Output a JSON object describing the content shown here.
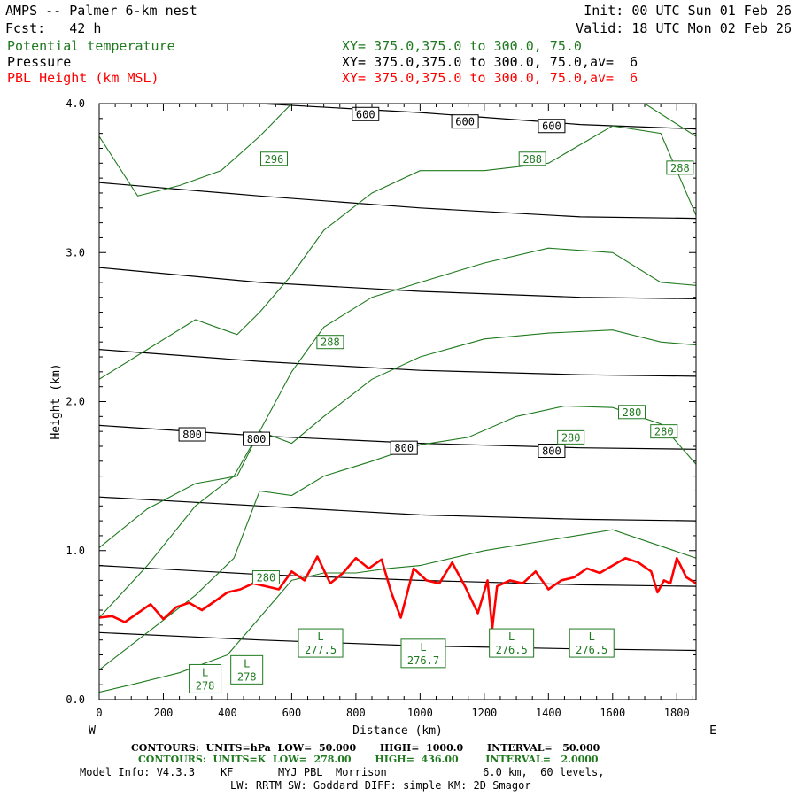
{
  "header": {
    "title": "AMPS -- Palmer 6-km nest",
    "fcst": "Fcst:   42 h",
    "init": "Init: 00 UTC Sun 01 Feb 26",
    "valid": "Valid: 18 UTC Mon 02 Feb 26",
    "legend": [
      {
        "label": "Potential temperature",
        "xy": "XY= 375.0,375.0 to 300.0, 75.0",
        "color": "#1f7a1f"
      },
      {
        "label": "Pressure",
        "xy": "XY= 375.0,375.0 to 300.0, 75.0,av=  6",
        "color": "#000000"
      },
      {
        "label": "PBL Height (km MSL)",
        "xy": "XY= 375.0,375.0 to 300.0, 75.0,av=  6",
        "color": "#ff0000"
      }
    ]
  },
  "footer": {
    "contours_pressure": "CONTOURS:  UNITS=hPa  LOW=  50.000       HIGH=  1000.0       INTERVAL=   50.000",
    "contours_theta": "CONTOURS:  UNITS=K  LOW=  278.00       HIGH=  436.00        INTERVAL=   2.0000",
    "model_info": "Model Info: V4.3.3    KF       MYJ PBL  Morrison               6.0 km,  60 levels,",
    "model_info2": "LW: RRTM SW: Goddard DIFF: simple KM: 2D Smagor"
  },
  "chart_data": {
    "type": "line",
    "xlabel": "Distance (km)",
    "ylabel": "Height (km)",
    "xlim": [
      0,
      1860
    ],
    "ylim": [
      0.0,
      4.0
    ],
    "x_ticks": [
      0,
      200,
      400,
      600,
      800,
      1000,
      1200,
      1400,
      1600,
      1800
    ],
    "y_ticks": [
      "0.0",
      "1.0",
      "2.0",
      "3.0",
      "4.0"
    ],
    "left_end_label": "W",
    "right_end_label": "E",
    "grid": false,
    "pressure_contours_hPa": [
      {
        "level": 600,
        "x": [
          0,
          500,
          1000,
          1500,
          1860
        ],
        "y": [
          4.1,
          4.0,
          3.94,
          3.86,
          3.83
        ]
      },
      {
        "level": 650,
        "x": [
          0,
          500,
          1000,
          1500,
          1860
        ],
        "y": [
          3.47,
          3.38,
          3.3,
          3.24,
          3.23
        ]
      },
      {
        "level": 700,
        "x": [
          0,
          500,
          1000,
          1500,
          1860
        ],
        "y": [
          2.9,
          2.8,
          2.74,
          2.7,
          2.69
        ]
      },
      {
        "level": 750,
        "x": [
          0,
          500,
          1000,
          1500,
          1860
        ],
        "y": [
          2.35,
          2.27,
          2.21,
          2.18,
          2.17
        ]
      },
      {
        "level": 800,
        "x": [
          0,
          500,
          1000,
          1500,
          1860
        ],
        "y": [
          1.84,
          1.77,
          1.72,
          1.69,
          1.68
        ]
      },
      {
        "level": 850,
        "x": [
          0,
          500,
          1000,
          1500,
          1860
        ],
        "y": [
          1.36,
          1.3,
          1.24,
          1.21,
          1.2
        ]
      },
      {
        "level": 900,
        "x": [
          0,
          500,
          1000,
          1500,
          1860
        ],
        "y": [
          0.9,
          0.84,
          0.8,
          0.77,
          0.76
        ]
      },
      {
        "level": 950,
        "x": [
          0,
          500,
          1000,
          1500,
          1860
        ],
        "y": [
          0.45,
          0.4,
          0.36,
          0.34,
          0.33
        ]
      }
    ],
    "pressure_labels": [
      {
        "text": "600",
        "x": 830,
        "y": 3.93
      },
      {
        "text": "600",
        "x": 1140,
        "y": 3.88
      },
      {
        "text": "600",
        "x": 1410,
        "y": 3.85
      },
      {
        "text": "800",
        "x": 290,
        "y": 1.78
      },
      {
        "text": "800",
        "x": 490,
        "y": 1.75
      },
      {
        "text": "800",
        "x": 950,
        "y": 1.69
      },
      {
        "text": "800",
        "x": 1410,
        "y": 1.67
      }
    ],
    "theta_contours_K": [
      {
        "x": [
          0,
          100,
          250,
          400,
          500,
          600,
          700,
          800,
          900,
          1000,
          1200,
          1400,
          1600,
          1860
        ],
        "y": [
          0.05,
          0.1,
          0.18,
          0.3,
          0.55,
          0.8,
          0.85,
          0.85,
          0.88,
          0.9,
          1.0,
          1.07,
          1.14,
          0.95
        ]
      },
      {
        "x": [
          0,
          150,
          300,
          420,
          500,
          600,
          700,
          850,
          1000,
          1150,
          1300,
          1450,
          1600,
          1750,
          1860
        ],
        "y": [
          0.2,
          0.45,
          0.7,
          0.95,
          1.4,
          1.37,
          1.5,
          1.6,
          1.71,
          1.76,
          1.9,
          1.97,
          1.96,
          1.85,
          1.58
        ]
      },
      {
        "x": [
          0,
          150,
          300,
          420,
          500,
          600,
          700,
          850,
          1000,
          1200,
          1400,
          1600,
          1750,
          1860
        ],
        "y": [
          0.55,
          0.9,
          1.3,
          1.5,
          1.8,
          1.72,
          1.9,
          2.15,
          2.3,
          2.42,
          2.46,
          2.48,
          2.4,
          2.38
        ]
      },
      {
        "x": [
          0,
          150,
          300,
          430,
          500,
          600,
          700,
          850,
          1000,
          1200,
          1400,
          1600,
          1750,
          1860
        ],
        "y": [
          1.02,
          1.28,
          1.45,
          1.5,
          1.8,
          2.2,
          2.5,
          2.7,
          2.8,
          2.93,
          3.03,
          3.0,
          2.8,
          2.78
        ]
      },
      {
        "x": [
          0,
          150,
          300,
          430,
          500,
          600,
          700,
          850,
          1000,
          1200,
          1400,
          1600,
          1750,
          1860
        ],
        "y": [
          2.15,
          2.35,
          2.55,
          2.45,
          2.6,
          2.85,
          3.15,
          3.4,
          3.55,
          3.55,
          3.6,
          3.85,
          3.8,
          3.25
        ]
      },
      {
        "x": [
          0,
          120,
          250,
          380,
          500,
          600,
          700,
          850,
          1000,
          1200,
          1350,
          1550,
          1700,
          1860
        ],
        "y": [
          3.78,
          3.38,
          3.45,
          3.55,
          3.78,
          4.0,
          4.0,
          4.0,
          4.0,
          4.0,
          4.0,
          4.0,
          4.0,
          3.78
        ]
      }
    ],
    "theta_labels": [
      {
        "text": "296",
        "x": 545,
        "y": 3.63
      },
      {
        "text": "288",
        "x": 720,
        "y": 2.4
      },
      {
        "text": "288",
        "x": 1350,
        "y": 3.63
      },
      {
        "text": "288",
        "x": 1810,
        "y": 3.57
      },
      {
        "text": "280",
        "x": 520,
        "y": 0.82
      },
      {
        "text": "280",
        "x": 1470,
        "y": 1.76
      },
      {
        "text": "280",
        "x": 1660,
        "y": 1.93
      },
      {
        "text": "280",
        "x": 1760,
        "y": 1.8
      }
    ],
    "low_markers": [
      {
        "letter": "L",
        "value": "278",
        "x": 330,
        "y": 0.14
      },
      {
        "letter": "L",
        "value": "278",
        "x": 460,
        "y": 0.2
      },
      {
        "letter": "L",
        "value": "277.5",
        "x": 690,
        "y": 0.38
      },
      {
        "letter": "L",
        "value": "276.7",
        "x": 1010,
        "y": 0.31
      },
      {
        "letter": "L",
        "value": "276.5",
        "x": 1285,
        "y": 0.38
      },
      {
        "letter": "L",
        "value": "276.5",
        "x": 1535,
        "y": 0.38
      }
    ],
    "series": [
      {
        "name": "PBL Height (km MSL)",
        "color": "#ff0000",
        "x": [
          0,
          40,
          80,
          120,
          160,
          200,
          240,
          280,
          320,
          360,
          400,
          440,
          480,
          520,
          560,
          600,
          640,
          680,
          720,
          760,
          800,
          840,
          880,
          910,
          940,
          980,
          1020,
          1060,
          1100,
          1140,
          1180,
          1210,
          1225,
          1240,
          1280,
          1320,
          1360,
          1400,
          1440,
          1480,
          1520,
          1560,
          1600,
          1640,
          1680,
          1720,
          1740,
          1760,
          1780,
          1800,
          1830,
          1860
        ],
        "y": [
          0.55,
          0.56,
          0.52,
          0.58,
          0.64,
          0.54,
          0.62,
          0.65,
          0.6,
          0.66,
          0.72,
          0.74,
          0.78,
          0.76,
          0.74,
          0.86,
          0.8,
          0.96,
          0.78,
          0.85,
          0.95,
          0.88,
          0.94,
          0.72,
          0.55,
          0.88,
          0.8,
          0.78,
          0.92,
          0.76,
          0.58,
          0.8,
          0.48,
          0.76,
          0.8,
          0.78,
          0.86,
          0.74,
          0.8,
          0.82,
          0.88,
          0.85,
          0.9,
          0.95,
          0.92,
          0.86,
          0.72,
          0.8,
          0.78,
          0.95,
          0.82,
          0.78
        ]
      }
    ]
  }
}
